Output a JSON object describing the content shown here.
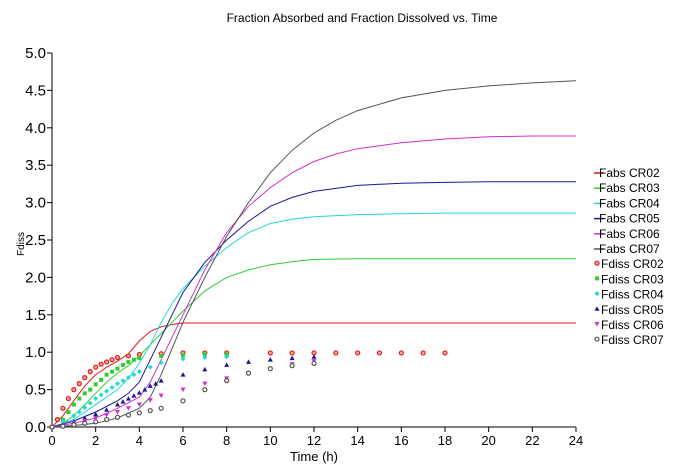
{
  "chart_data": {
    "type": "line",
    "title": "Fraction Absorbed and Fraction Dissolved vs. Time",
    "xlabel": "Time (h)",
    "ylabel": "Fdiss",
    "xlim": [
      0,
      24
    ],
    "ylim": [
      0,
      5
    ],
    "x_ticks": [
      "0",
      "2",
      "4",
      "6",
      "8",
      "10",
      "12",
      "14",
      "16",
      "18",
      "20",
      "22",
      "24"
    ],
    "y_ticks": [
      "0.0",
      "0.5",
      "1.0",
      "1.5",
      "2.0",
      "2.5",
      "3.0",
      "3.5",
      "4.0",
      "4.5",
      "5.0"
    ],
    "grid": false,
    "legend_position": "right",
    "series": [
      {
        "name": "Fabs CR02",
        "kind": "line",
        "color": "#e0191b",
        "x": [
          0,
          0.5,
          1,
          1.5,
          2,
          2.5,
          3,
          3.5,
          4,
          4.5,
          5,
          5.5,
          6,
          7,
          8,
          10,
          12,
          14,
          16,
          18,
          20,
          22,
          24
        ],
        "y": [
          0,
          0.15,
          0.35,
          0.55,
          0.7,
          0.8,
          0.88,
          0.98,
          1.15,
          1.28,
          1.34,
          1.37,
          1.39,
          1.39,
          1.39,
          1.39,
          1.39,
          1.39,
          1.39,
          1.39,
          1.39,
          1.39,
          1.39
        ]
      },
      {
        "name": "Fabs CR03",
        "kind": "line",
        "color": "#33cc33",
        "x": [
          0,
          0.5,
          1,
          1.5,
          2,
          2.5,
          3,
          3.5,
          4,
          4.5,
          5,
          5.5,
          6,
          7,
          8,
          9,
          10,
          11,
          12,
          14,
          16,
          18,
          20,
          22,
          24
        ],
        "y": [
          0,
          0.05,
          0.15,
          0.3,
          0.45,
          0.6,
          0.72,
          0.82,
          0.95,
          1.1,
          1.25,
          1.4,
          1.55,
          1.82,
          2.0,
          2.1,
          2.17,
          2.21,
          2.24,
          2.25,
          2.25,
          2.25,
          2.25,
          2.25,
          2.25
        ]
      },
      {
        "name": "Fabs CR04",
        "kind": "line",
        "color": "#22d8d8",
        "x": [
          0,
          1,
          2,
          3,
          3.5,
          4,
          4.5,
          5,
          5.5,
          6,
          7,
          8,
          9,
          10,
          11,
          12,
          14,
          16,
          18,
          20,
          22,
          24
        ],
        "y": [
          0,
          0.1,
          0.3,
          0.5,
          0.65,
          0.85,
          1.1,
          1.4,
          1.65,
          1.85,
          2.15,
          2.4,
          2.6,
          2.72,
          2.78,
          2.81,
          2.84,
          2.85,
          2.86,
          2.86,
          2.86,
          2.86
        ]
      },
      {
        "name": "Fabs CR05",
        "kind": "line",
        "color": "#1a1a99",
        "x": [
          0,
          1,
          2,
          3,
          3.5,
          4,
          4.5,
          5,
          5.5,
          6,
          7,
          8,
          9,
          10,
          11,
          12,
          14,
          16,
          18,
          20,
          22,
          24
        ],
        "y": [
          0,
          0.08,
          0.2,
          0.35,
          0.45,
          0.6,
          0.9,
          1.2,
          1.5,
          1.8,
          2.2,
          2.5,
          2.75,
          2.95,
          3.07,
          3.15,
          3.23,
          3.26,
          3.27,
          3.28,
          3.28,
          3.28
        ]
      },
      {
        "name": "Fabs CR06",
        "kind": "line",
        "color": "#cc33cc",
        "x": [
          0,
          1,
          2,
          3,
          4,
          4.5,
          5,
          5.5,
          6,
          7,
          8,
          9,
          10,
          11,
          12,
          13,
          14,
          16,
          18,
          20,
          22,
          24
        ],
        "y": [
          0,
          0.05,
          0.12,
          0.25,
          0.4,
          0.6,
          0.9,
          1.2,
          1.5,
          2.1,
          2.6,
          2.95,
          3.2,
          3.4,
          3.55,
          3.65,
          3.72,
          3.8,
          3.85,
          3.88,
          3.89,
          3.89
        ]
      },
      {
        "name": "Fabs CR07",
        "kind": "line",
        "color": "#555555",
        "x": [
          0,
          1,
          2,
          3,
          4,
          4.5,
          5,
          5.5,
          6,
          7,
          8,
          9,
          10,
          11,
          12,
          13,
          14,
          16,
          18,
          20,
          22,
          24
        ],
        "y": [
          0,
          0.02,
          0.05,
          0.12,
          0.25,
          0.4,
          0.7,
          1.05,
          1.4,
          2.0,
          2.55,
          3.0,
          3.4,
          3.7,
          3.93,
          4.1,
          4.23,
          4.4,
          4.5,
          4.56,
          4.6,
          4.63
        ]
      },
      {
        "name": "Fdiss CR02",
        "kind": "marker",
        "marker": "circle",
        "color": "#e0191b",
        "x": [
          0,
          0.25,
          0.5,
          0.75,
          1,
          1.25,
          1.5,
          1.75,
          2,
          2.25,
          2.5,
          2.75,
          3,
          3.5,
          4,
          5,
          6,
          7,
          8,
          10,
          11,
          12,
          13,
          14,
          15,
          16,
          17,
          18
        ],
        "y": [
          0,
          0.1,
          0.25,
          0.38,
          0.5,
          0.58,
          0.66,
          0.74,
          0.8,
          0.84,
          0.87,
          0.9,
          0.93,
          0.95,
          0.97,
          0.98,
          0.99,
          0.99,
          0.99,
          0.99,
          0.99,
          0.99,
          0.99,
          0.99,
          0.99,
          0.99,
          0.99,
          0.99
        ]
      },
      {
        "name": "Fdiss CR03",
        "kind": "marker",
        "marker": "square",
        "color": "#33cc33",
        "x": [
          0,
          0.5,
          0.75,
          1,
          1.25,
          1.5,
          1.75,
          2,
          2.25,
          2.5,
          2.75,
          3,
          3.25,
          3.5,
          3.75,
          4,
          5,
          6,
          7,
          8
        ],
        "y": [
          0,
          0.1,
          0.2,
          0.3,
          0.38,
          0.45,
          0.5,
          0.57,
          0.63,
          0.7,
          0.74,
          0.78,
          0.83,
          0.87,
          0.9,
          0.92,
          0.95,
          0.96,
          0.97,
          0.97
        ]
      },
      {
        "name": "Fdiss CR04",
        "kind": "marker",
        "marker": "diamond",
        "color": "#22d8d8",
        "x": [
          0,
          0.5,
          1,
          1.25,
          1.5,
          1.75,
          2,
          2.25,
          2.5,
          2.75,
          3,
          3.25,
          3.5,
          3.75,
          4,
          4.5,
          5,
          6,
          7,
          8
        ],
        "y": [
          0,
          0.07,
          0.15,
          0.2,
          0.26,
          0.32,
          0.38,
          0.43,
          0.48,
          0.53,
          0.58,
          0.62,
          0.66,
          0.7,
          0.74,
          0.8,
          0.86,
          0.91,
          0.93,
          0.94
        ]
      },
      {
        "name": "Fdiss CR05",
        "kind": "marker",
        "marker": "triangle-up",
        "color": "#1a1a99",
        "x": [
          0,
          0.5,
          1,
          1.5,
          2,
          2.5,
          3,
          3.25,
          3.5,
          3.75,
          4,
          4.25,
          4.5,
          4.75,
          5,
          6,
          7,
          8,
          9,
          10,
          11,
          12
        ],
        "y": [
          0,
          0.03,
          0.07,
          0.12,
          0.17,
          0.23,
          0.3,
          0.34,
          0.38,
          0.42,
          0.46,
          0.5,
          0.55,
          0.58,
          0.62,
          0.7,
          0.77,
          0.83,
          0.87,
          0.9,
          0.92,
          0.94
        ]
      },
      {
        "name": "Fdiss CR06",
        "kind": "marker",
        "marker": "triangle-down",
        "color": "#cc33cc",
        "x": [
          0,
          0.5,
          1,
          1.5,
          2,
          2.5,
          3,
          3.5,
          4,
          4.5,
          5,
          6,
          7,
          8,
          9,
          10,
          11,
          12
        ],
        "y": [
          0,
          0.02,
          0.05,
          0.08,
          0.12,
          0.16,
          0.2,
          0.25,
          0.3,
          0.36,
          0.42,
          0.5,
          0.58,
          0.65,
          0.72,
          0.78,
          0.84,
          0.88
        ]
      },
      {
        "name": "Fdiss CR07",
        "kind": "marker",
        "marker": "circle-open",
        "color": "#555555",
        "x": [
          0,
          0.5,
          1,
          1.5,
          2,
          2.5,
          3,
          3.5,
          4,
          4.5,
          5,
          6,
          7,
          8,
          9,
          10,
          11,
          12
        ],
        "y": [
          0,
          0.01,
          0.03,
          0.05,
          0.07,
          0.1,
          0.13,
          0.16,
          0.19,
          0.22,
          0.25,
          0.35,
          0.5,
          0.62,
          0.72,
          0.78,
          0.82,
          0.85
        ]
      }
    ]
  }
}
